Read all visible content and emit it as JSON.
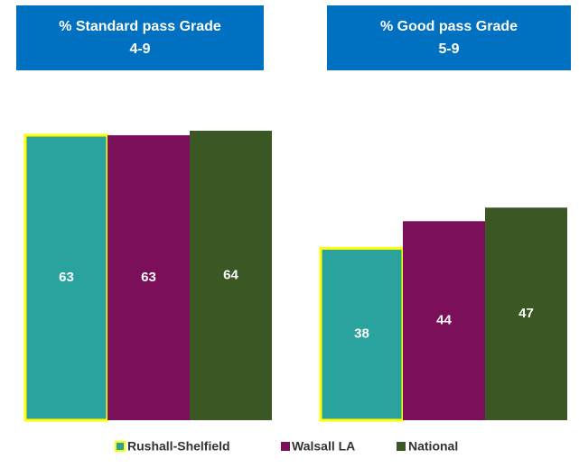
{
  "chart_data": [
    {
      "type": "bar",
      "title": [
        "% Standard pass  Grade",
        "4-9"
      ],
      "series": [
        {
          "name": "Rushall-Shelfield",
          "color": "#2aa39e",
          "outline": "#ffff00",
          "values": [
            63
          ]
        },
        {
          "name": "Walsall LA",
          "color": "#7b0f5a",
          "values": [
            63
          ]
        },
        {
          "name": "National",
          "color": "#3a5724",
          "values": [
            64
          ]
        }
      ]
    },
    {
      "type": "bar",
      "title": [
        "% Good pass Grade",
        "5-9"
      ],
      "series": [
        {
          "color": "#2aa39e",
          "outline": "#ffff00",
          "values": [
            38
          ]
        },
        {
          "color": "#7b0f5a",
          "values": [
            44
          ]
        },
        {
          "color": "#3a5724",
          "values": [
            47
          ]
        }
      ]
    }
  ]
}
